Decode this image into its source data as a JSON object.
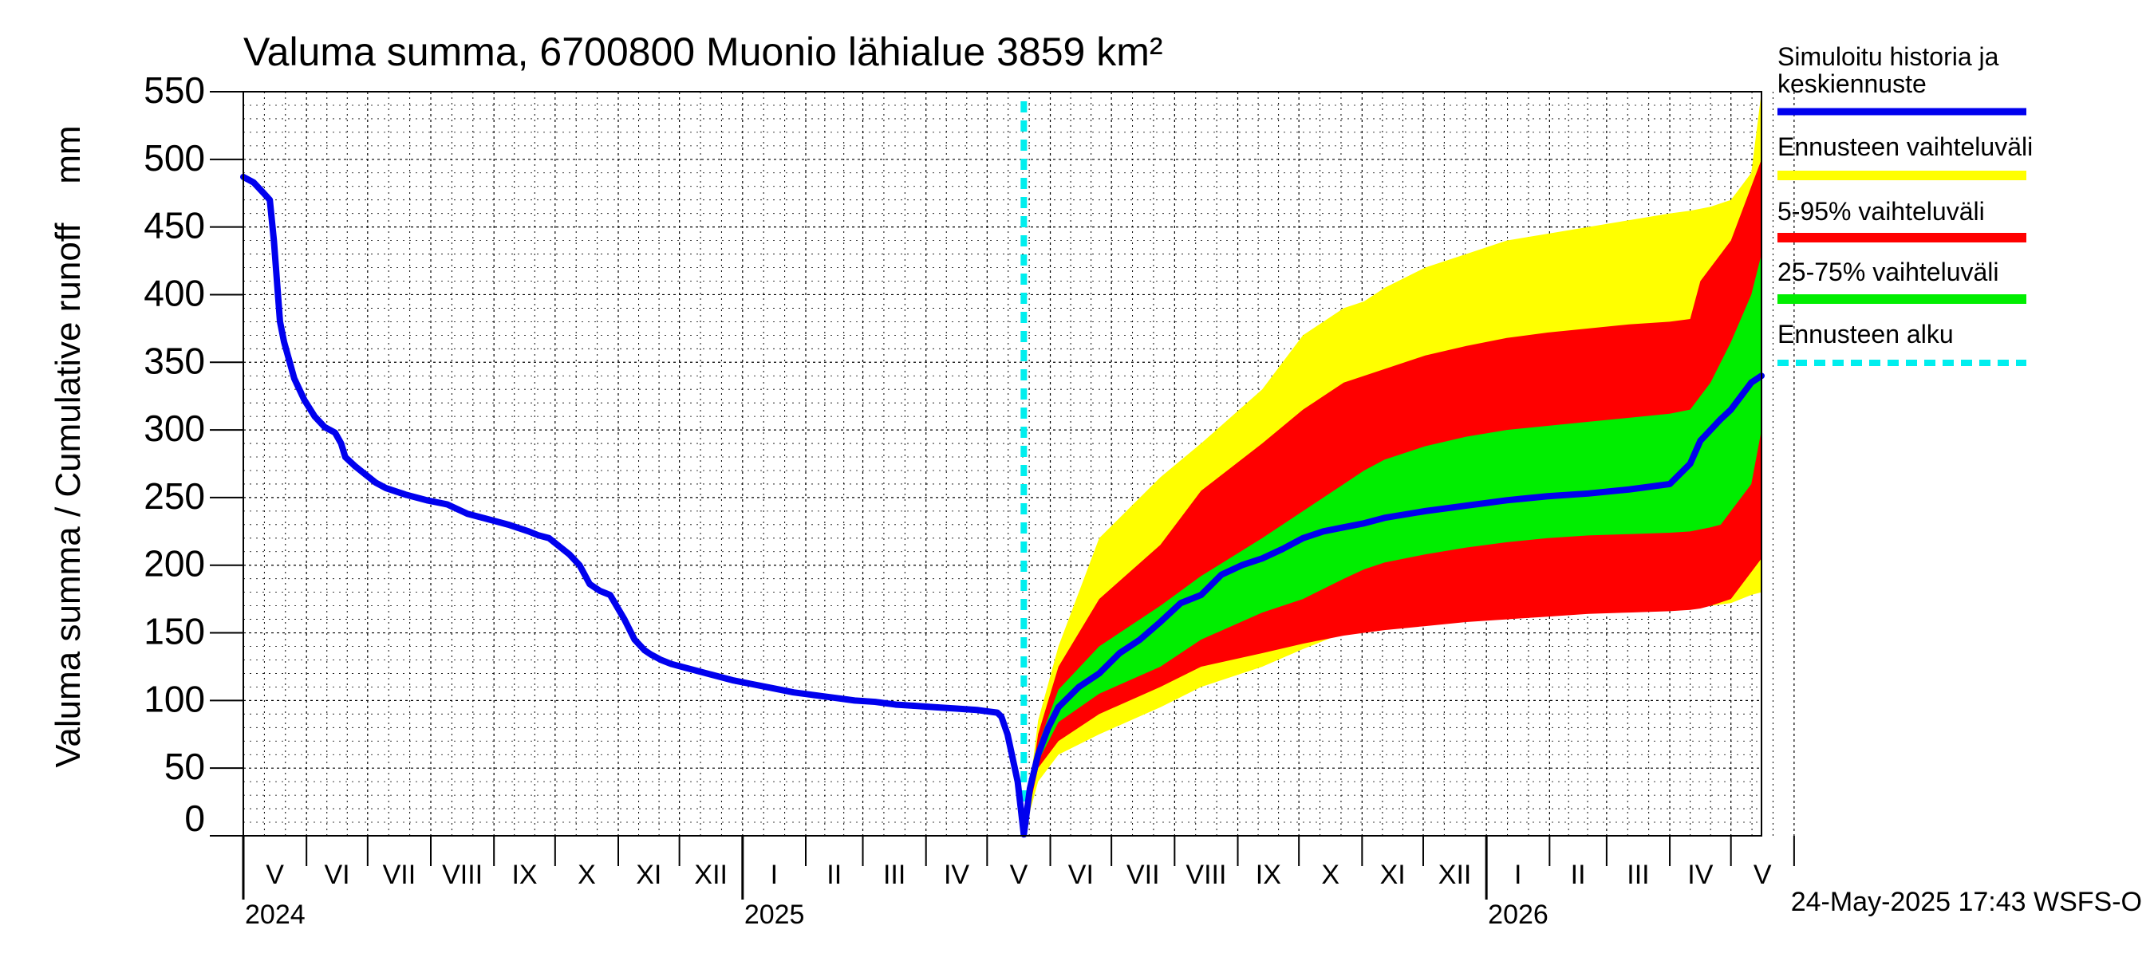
{
  "chart_data": {
    "type": "area",
    "title": "Valuma summa, 6700800 Muonio lähialue 3859 km²",
    "ylabel": "Valuma summa / Cumulative runoff    mm",
    "ylim": [
      0,
      550
    ],
    "yticks": [
      "0",
      "50",
      "100",
      "150",
      "200",
      "250",
      "300",
      "350",
      "400",
      "450",
      "500",
      "550"
    ],
    "month_labels": [
      "V",
      "VI",
      "VII",
      "VIII",
      "IX",
      "X",
      "XI",
      "XII",
      "I",
      "II",
      "III",
      "IV",
      "V",
      "VI",
      "VII",
      "VIII",
      "IX",
      "X",
      "XI",
      "XII",
      "I",
      "II",
      "III",
      "IV",
      "V"
    ],
    "year_labels": [
      "2024",
      "2025",
      "2026"
    ],
    "x_unit": "days since 2024-05-01",
    "x_range": [
      0,
      745
    ],
    "forecast_start_day": 383,
    "legend": [
      {
        "label": "Simuloitu historia ja keskiennuste",
        "color": "#0000ee",
        "style": "line"
      },
      {
        "label": "Ennusteen vaihteluväli",
        "color": "#ffff00",
        "style": "band"
      },
      {
        "label": "5-95% vaihteluväli",
        "color": "#ff0000",
        "style": "band"
      },
      {
        "label": "25-75% vaihteluväli",
        "color": "#00ee00",
        "style": "band"
      },
      {
        "label": "Ennusteen alku",
        "color": "#00eeee",
        "style": "dashed"
      }
    ],
    "timestamp": "24-May-2025 17:43 WSFS-O",
    "series": [
      {
        "name": "Simuloitu historia ja keskiennuste",
        "x": [
          0,
          5,
          10,
          13,
          15,
          18,
          20,
          25,
          30,
          35,
          40,
          45,
          48,
          50,
          55,
          60,
          65,
          70,
          80,
          90,
          100,
          110,
          115,
          120,
          130,
          140,
          145,
          150,
          160,
          165,
          170,
          175,
          180,
          187,
          192,
          197,
          200,
          205,
          210,
          220,
          230,
          240,
          250,
          260,
          270,
          280,
          290,
          300,
          310,
          320,
          330,
          340,
          350,
          360,
          365,
          370,
          372,
          375,
          380,
          383,
          386,
          390,
          395,
          400,
          410,
          420,
          430,
          440,
          450,
          460,
          470,
          480,
          490,
          500,
          510,
          520,
          530,
          540,
          550,
          560,
          580,
          600,
          620,
          640,
          660,
          680,
          700,
          710,
          715,
          720,
          725,
          730,
          735,
          740,
          745
        ],
        "values": [
          487,
          483,
          475,
          470,
          440,
          380,
          365,
          338,
          322,
          310,
          302,
          298,
          290,
          280,
          273,
          267,
          261,
          257,
          252,
          248,
          245,
          238,
          236,
          234,
          230,
          225,
          222,
          220,
          208,
          200,
          186,
          181,
          178,
          160,
          145,
          137,
          134,
          130,
          127,
          123,
          119,
          115,
          112,
          109,
          106,
          104,
          102,
          100,
          99,
          97,
          96,
          95,
          94,
          93,
          92,
          91,
          88,
          75,
          40,
          1,
          35,
          60,
          80,
          95,
          110,
          120,
          135,
          145,
          158,
          172,
          178,
          193,
          200,
          205,
          212,
          220,
          225,
          228,
          231,
          235,
          240,
          244,
          248,
          251,
          253,
          256,
          260,
          275,
          292,
          300,
          308,
          315,
          325,
          335,
          340
        ]
      },
      {
        "name": "Ennusteen vaihteluväli",
        "x": [
          383,
          390,
          400,
          420,
          450,
          470,
          500,
          520,
          540,
          550,
          560,
          580,
          600,
          620,
          640,
          660,
          680,
          700,
          710,
          720,
          730,
          740,
          745
        ],
        "upper": [
          1,
          85,
          140,
          220,
          265,
          290,
          330,
          370,
          390,
          395,
          405,
          420,
          430,
          440,
          445,
          450,
          455,
          460,
          462,
          465,
          470,
          490,
          550
        ],
        "lower": [
          1,
          40,
          60,
          75,
          95,
          110,
          125,
          138,
          150,
          152,
          155,
          160,
          163,
          165,
          167,
          168,
          169,
          170,
          170,
          170,
          172,
          178,
          180
        ]
      },
      {
        "name": "5-95% vaihteluväli",
        "x": [
          383,
          390,
          400,
          420,
          450,
          470,
          500,
          520,
          540,
          550,
          560,
          580,
          600,
          620,
          640,
          660,
          680,
          700,
          710,
          715,
          720,
          730,
          740,
          745
        ],
        "upper": [
          1,
          75,
          125,
          175,
          215,
          255,
          290,
          315,
          335,
          340,
          345,
          355,
          362,
          368,
          372,
          375,
          378,
          380,
          382,
          410,
          420,
          440,
          480,
          500
        ],
        "lower": [
          1,
          50,
          70,
          90,
          110,
          125,
          135,
          142,
          148,
          150,
          152,
          155,
          158,
          160,
          162,
          164,
          165,
          166,
          167,
          168,
          170,
          175,
          195,
          205
        ]
      },
      {
        "name": "25-75% vaihteluväli",
        "x": [
          383,
          390,
          400,
          420,
          450,
          470,
          500,
          520,
          540,
          550,
          560,
          580,
          600,
          620,
          640,
          660,
          680,
          700,
          710,
          720,
          725,
          730,
          740,
          745
        ],
        "upper": [
          1,
          67,
          108,
          140,
          170,
          192,
          220,
          240,
          260,
          270,
          278,
          288,
          295,
          300,
          303,
          306,
          309,
          312,
          315,
          335,
          350,
          365,
          400,
          430
        ],
        "lower": [
          1,
          55,
          84,
          105,
          125,
          145,
          165,
          175,
          190,
          197,
          202,
          208,
          213,
          217,
          220,
          222,
          223,
          224,
          225,
          228,
          230,
          240,
          260,
          300
        ]
      }
    ]
  }
}
